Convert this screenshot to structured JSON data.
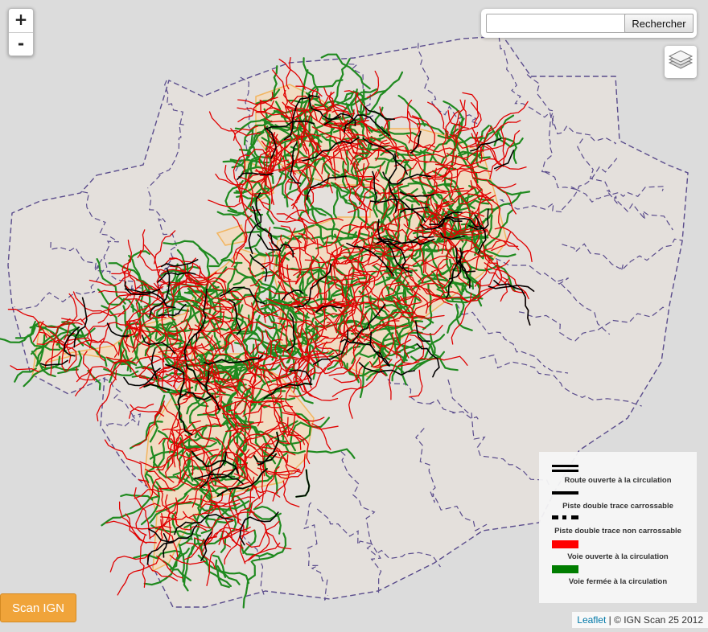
{
  "map": {
    "colors": {
      "background": "#dcdcdc",
      "commune_fill": "#e4e0dc",
      "commune_border": "#5a4c8c",
      "forest_fill": "#f1dcc2",
      "forest_border": "#f2b560",
      "open_road": "#e00000",
      "closed_road": "#1f8a1f",
      "track": "#000000"
    }
  },
  "zoom": {
    "in_label": "+",
    "out_label": "-"
  },
  "search": {
    "placeholder": "",
    "value": "",
    "button_label": "Rechercher"
  },
  "layers": {
    "icon": "layers-icon"
  },
  "legend": {
    "items": [
      {
        "label": "Route ouverte à la circulation",
        "symbol": "double-black-line"
      },
      {
        "label": "Piste double trace carrossable",
        "symbol": "solid-black-line"
      },
      {
        "label": "Piste double trace non carrossable",
        "symbol": "dashed-black-line"
      },
      {
        "label": "Voie ouverte à la circulation",
        "symbol": "red-line",
        "color": "#ff0000"
      },
      {
        "label": "Voie fermée à la circulation",
        "symbol": "green-line",
        "color": "#007d00"
      }
    ]
  },
  "scan_button": {
    "label": "Scan IGN"
  },
  "attribution": {
    "link": "Leaflet",
    "text": "| © IGN Scan 25 2012"
  }
}
